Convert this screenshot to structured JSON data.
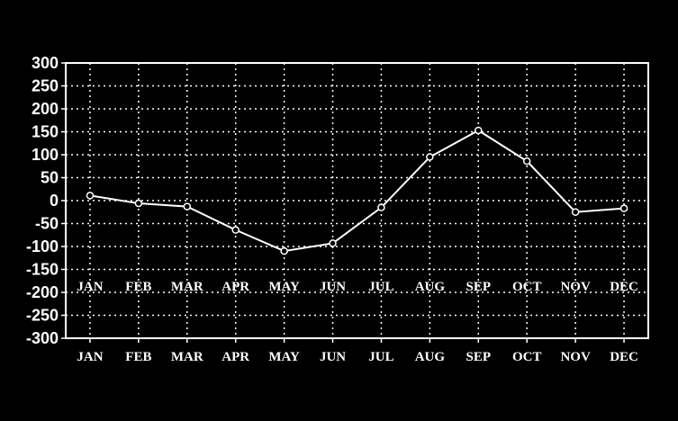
{
  "chart_data": {
    "type": "line",
    "title": "",
    "xlabel": "",
    "ylabel": "",
    "categories": [
      "JAN",
      "FEB",
      "MAR",
      "APR",
      "MAY",
      "JUN",
      "JUL",
      "AUG",
      "SEP",
      "OCT",
      "NOV",
      "DEC"
    ],
    "series": [
      {
        "values": [
          11,
          -6,
          -13,
          -64,
          -110,
          -93,
          -15,
          95,
          153,
          86,
          -25,
          -17
        ]
      }
    ],
    "ylim": [
      -300,
      300
    ],
    "yticks": [
      300,
      250,
      200,
      150,
      100,
      50,
      0,
      -50,
      -100,
      -150,
      -200,
      -250,
      -300
    ],
    "grid": true,
    "grid_style": "dotted",
    "marker": "open-circle",
    "inner_month_labels": true,
    "colors": {
      "background": "#000000",
      "line": "#ffffff",
      "grid": "#ffffff"
    }
  }
}
